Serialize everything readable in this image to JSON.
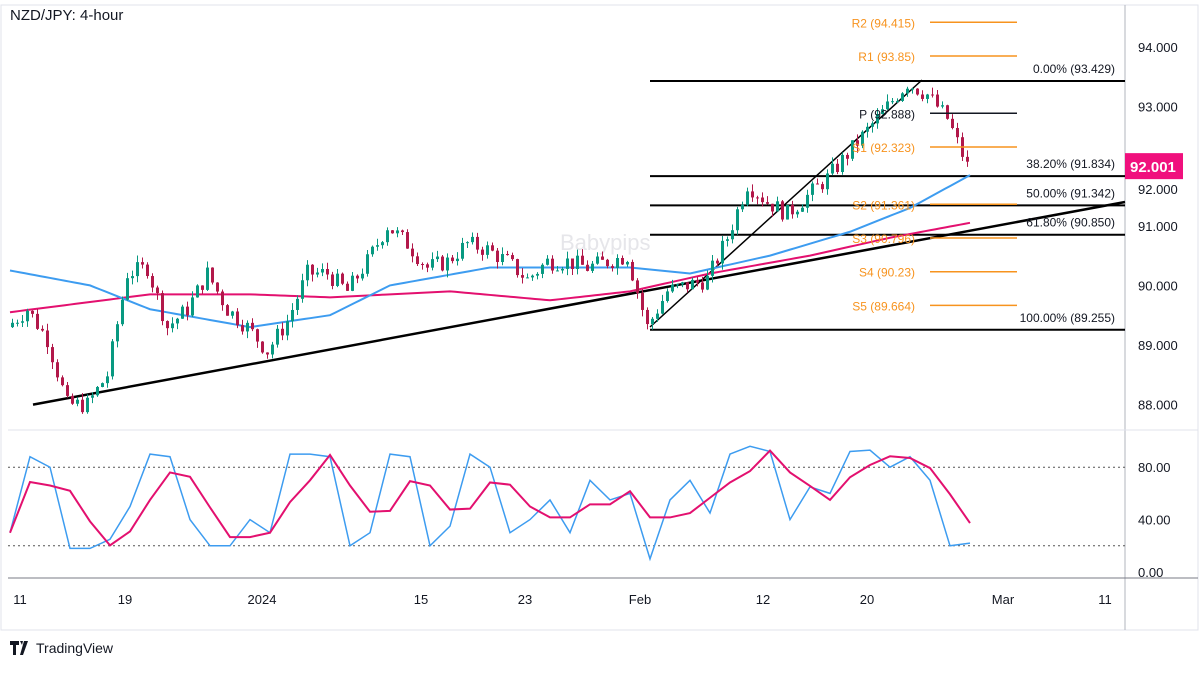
{
  "title": "NZD/JPY: 4-hour",
  "brand": "TradingView",
  "watermark": "Babypips",
  "colors": {
    "bull": "#089981",
    "bear": "#b2184a",
    "ma_fast": "#3d9cf0",
    "ma_slow": "#e3106f",
    "pivot": "#f7931e",
    "last_price": "#f0107d",
    "stoch_k": "#3d9cf0",
    "stoch_d": "#e3106f"
  },
  "chart_data": {
    "type": "line",
    "title": "NZD/JPY: 4-hour",
    "price_axis": {
      "ticks": [
        "94.000",
        "93.000",
        "92.000",
        "91.000",
        "90.000",
        "89.000",
        "88.000"
      ],
      "tick_values": [
        94,
        93,
        92,
        91,
        90,
        89,
        88
      ]
    },
    "last_price": "92.001",
    "x_ticks": [
      "11",
      "19",
      "2024",
      "15",
      "23",
      "Feb",
      "12",
      "20",
      "Mar",
      "11"
    ],
    "closes": [
      89.3,
      89.6,
      89.1,
      88.0,
      88.0,
      88.5,
      90.2,
      90.3,
      89.3,
      89.6,
      90.2,
      89.6,
      89.3,
      88.9,
      89.4,
      90.2,
      90.2,
      89.9,
      90.4,
      91.0,
      90.7,
      90.3,
      90.4,
      90.7,
      90.6,
      90.4,
      90.1,
      90.4,
      90.4,
      90.3,
      90.4,
      90.5,
      89.3,
      89.9,
      90.0,
      90.1,
      90.8,
      91.7,
      91.4,
      91.2,
      91.5,
      91.8,
      92.2,
      92.6,
      93.0,
      93.4,
      93.2,
      92.8,
      92.0
    ],
    "ma_fast": [
      [
        0,
        90.25
      ],
      [
        4,
        90.0
      ],
      [
        7,
        89.6
      ],
      [
        12,
        89.3
      ],
      [
        16,
        89.5
      ],
      [
        19,
        90.0
      ],
      [
        24,
        90.3
      ],
      [
        31,
        90.3
      ],
      [
        34,
        90.2
      ],
      [
        38,
        90.5
      ],
      [
        42,
        90.9
      ],
      [
        45,
        91.3
      ],
      [
        48,
        91.85
      ]
    ],
    "ma_slow": [
      [
        0,
        89.55
      ],
      [
        7,
        89.85
      ],
      [
        12,
        89.85
      ],
      [
        16,
        89.8
      ],
      [
        22,
        89.9
      ],
      [
        27,
        89.75
      ],
      [
        31,
        89.9
      ],
      [
        35,
        90.2
      ],
      [
        40,
        90.5
      ],
      [
        44,
        90.8
      ],
      [
        48,
        91.05
      ]
    ],
    "trendline": {
      "from": 88.0,
      "to": 91.4
    },
    "fib_levels": [
      {
        "label": "0.00% (93.429)",
        "value": 93.429
      },
      {
        "label": "38.20% (91.834)",
        "value": 91.834
      },
      {
        "label": "50.00% (91.342)",
        "value": 91.342
      },
      {
        "label": "61.80% (90.850)",
        "value": 90.85
      },
      {
        "label": "100.00% (89.255)",
        "value": 89.255
      }
    ],
    "pivots": [
      {
        "label": "R2 (94.415)",
        "value": 94.415,
        "color": "#f7931e"
      },
      {
        "label": "R1 (93.85)",
        "value": 93.85,
        "color": "#f7931e"
      },
      {
        "label": "P (92.888)",
        "value": 92.888,
        "color": "#131722"
      },
      {
        "label": "S1 (92.323)",
        "value": 92.323,
        "color": "#f7931e"
      },
      {
        "label": "S2 (91.361)",
        "value": 91.361,
        "color": "#f7931e"
      },
      {
        "label": "S3 (90.796)",
        "value": 90.796,
        "color": "#f7931e"
      },
      {
        "label": "S4 (90.23)",
        "value": 90.23,
        "color": "#f7931e"
      },
      {
        "label": "S5 (89.664)",
        "value": 89.664,
        "color": "#f7931e"
      }
    ],
    "stochastic": {
      "ticks": [
        "80.00",
        "40.00",
        "0.00"
      ],
      "tick_values": [
        80,
        40,
        0
      ],
      "levels": [
        80,
        20
      ],
      "k": [
        30,
        88,
        80,
        18,
        18,
        25,
        50,
        90,
        88,
        40,
        20,
        20,
        40,
        30,
        90,
        90,
        88,
        20,
        30,
        90,
        88,
        20,
        35,
        90,
        80,
        30,
        40,
        55,
        30,
        70,
        55,
        60,
        10,
        55,
        70,
        45,
        90,
        96,
        92,
        40,
        65,
        60,
        92,
        93,
        80,
        88,
        70,
        20,
        22
      ]
    }
  }
}
